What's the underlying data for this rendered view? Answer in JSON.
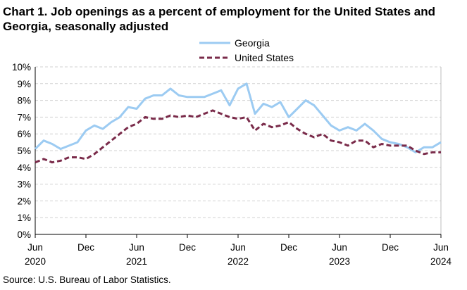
{
  "chart_data": {
    "type": "line",
    "title": "Chart 1. Job openings as a percent of employment for the United States and Georgia, seasonally adjusted",
    "source": "Source: U.S. Bureau of Labor Statistics.",
    "x_tick_labels": [
      {
        "month": "Jun",
        "year": "2020"
      },
      {
        "month": "Dec",
        "year": ""
      },
      {
        "month": "Jun",
        "year": "2021"
      },
      {
        "month": "Dec",
        "year": ""
      },
      {
        "month": "Jun",
        "year": "2022"
      },
      {
        "month": "Dec",
        "year": ""
      },
      {
        "month": "Jun",
        "year": "2023"
      },
      {
        "month": "Dec",
        "year": ""
      },
      {
        "month": "Jun",
        "year": "2024"
      }
    ],
    "y_tick_labels": [
      "0%",
      "1%",
      "2%",
      "3%",
      "4%",
      "5%",
      "6%",
      "7%",
      "8%",
      "9%",
      "10%"
    ],
    "ylim": [
      0,
      10
    ],
    "grid": "horizontal dashed",
    "legend_position": "top-center",
    "x": [
      "2020-06",
      "2020-07",
      "2020-08",
      "2020-09",
      "2020-10",
      "2020-11",
      "2020-12",
      "2021-01",
      "2021-02",
      "2021-03",
      "2021-04",
      "2021-05",
      "2021-06",
      "2021-07",
      "2021-08",
      "2021-09",
      "2021-10",
      "2021-11",
      "2021-12",
      "2022-01",
      "2022-02",
      "2022-03",
      "2022-04",
      "2022-05",
      "2022-06",
      "2022-07",
      "2022-08",
      "2022-09",
      "2022-10",
      "2022-11",
      "2022-12",
      "2023-01",
      "2023-02",
      "2023-03",
      "2023-04",
      "2023-05",
      "2023-06",
      "2023-07",
      "2023-08",
      "2023-09",
      "2023-10",
      "2023-11",
      "2023-12",
      "2024-01",
      "2024-02",
      "2024-03",
      "2024-04",
      "2024-05",
      "2024-06"
    ],
    "series": [
      {
        "name": "Georgia",
        "color": "#9ccbf2",
        "style": "solid",
        "values": [
          5.1,
          5.6,
          5.4,
          5.1,
          5.3,
          5.5,
          6.2,
          6.5,
          6.3,
          6.7,
          7.0,
          7.6,
          7.5,
          8.1,
          8.3,
          8.3,
          8.7,
          8.3,
          8.2,
          8.2,
          8.2,
          8.4,
          8.6,
          7.7,
          8.7,
          9.0,
          7.2,
          7.8,
          7.6,
          7.9,
          7.0,
          7.5,
          8.0,
          7.7,
          7.1,
          6.5,
          6.2,
          6.4,
          6.2,
          6.6,
          6.2,
          5.7,
          5.5,
          5.4,
          5.2,
          4.9,
          5.2,
          5.2,
          5.5
        ]
      },
      {
        "name": "United States",
        "color": "#7a2b4a",
        "style": "dashed",
        "values": [
          4.3,
          4.5,
          4.3,
          4.4,
          4.6,
          4.6,
          4.5,
          4.8,
          5.2,
          5.6,
          6.0,
          6.4,
          6.6,
          7.0,
          6.9,
          6.9,
          7.1,
          7.0,
          7.1,
          7.0,
          7.2,
          7.4,
          7.2,
          7.0,
          6.9,
          7.0,
          6.2,
          6.6,
          6.4,
          6.5,
          6.7,
          6.3,
          6.0,
          5.8,
          6.0,
          5.6,
          5.5,
          5.3,
          5.6,
          5.6,
          5.2,
          5.4,
          5.3,
          5.3,
          5.3,
          5.0,
          4.8,
          4.9,
          4.9
        ]
      }
    ]
  }
}
